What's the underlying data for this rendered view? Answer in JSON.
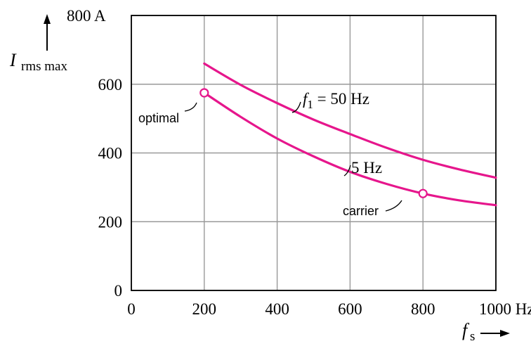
{
  "chart_data": {
    "type": "line",
    "x_axis": {
      "label": "f",
      "label_subscript": "s",
      "min": 0,
      "max": 1000,
      "unit": "Hz",
      "ticks": [
        0,
        200,
        400,
        600,
        800,
        1000
      ],
      "tick_labels": [
        "0",
        "200",
        "400",
        "600",
        "800",
        "1000 Hz"
      ]
    },
    "y_axis": {
      "label": "I",
      "label_subscript": "rms max",
      "min": 0,
      "max": 800,
      "unit": "A",
      "ticks": [
        0,
        200,
        400,
        600,
        800
      ],
      "tick_labels": [
        "0",
        "200",
        "400",
        "600",
        "800 A"
      ]
    },
    "grid": true,
    "series": [
      {
        "name_var": "f",
        "name_sub": "1",
        "name_rest": " = 50 Hz",
        "color": "#e6168c",
        "x": [
          200,
          300,
          400,
          500,
          600,
          700,
          800,
          900,
          1000
        ],
        "y": [
          660,
          598,
          545,
          497,
          455,
          415,
          380,
          352,
          328
        ]
      },
      {
        "name": "5 Hz",
        "color": "#e6168c",
        "x": [
          200,
          300,
          400,
          500,
          600,
          700,
          800,
          900,
          1000
        ],
        "y": [
          575,
          505,
          442,
          390,
          345,
          310,
          282,
          262,
          248
        ]
      }
    ],
    "annotations": [
      {
        "text": "optimal",
        "x": 200,
        "y": 575
      },
      {
        "text": "carrier",
        "x": 800,
        "y": 282
      }
    ]
  }
}
